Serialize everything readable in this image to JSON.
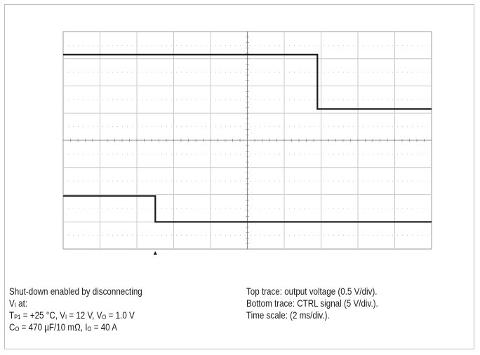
{
  "chart_data": {
    "type": "line",
    "x_divisions": 10,
    "y_divisions": 8,
    "major_grid": true,
    "minor_grid": "dotted",
    "series": [
      {
        "name": "Top trace: output voltage (0.5 V/div).",
        "points": [
          [
            0.0,
            7.15
          ],
          [
            6.9,
            7.15
          ],
          [
            6.9,
            5.15
          ],
          [
            10.0,
            5.15
          ]
        ],
        "color": "#1a1a1a"
      },
      {
        "name": "Bottom trace: CTRL signal (5 V/div.).",
        "points": [
          [
            0.0,
            1.95
          ],
          [
            2.5,
            1.95
          ],
          [
            2.5,
            1.0
          ],
          [
            10.0,
            1.0
          ]
        ],
        "color": "#1a1a1a"
      }
    ],
    "trigger_marker_x": 2.5
  },
  "caption_left": {
    "line1": "Shut-down enabled by disconnecting",
    "line2_var": "V",
    "line2_sub": "I",
    "line2_rest": " at:",
    "cond1": {
      "tp_var": "T",
      "tp_sub": "P1",
      "tp_val": " = +25 °C, ",
      "vi_var": "V",
      "vi_sub": "I",
      "vi_val": " = 12 V, ",
      "vo_var": "V",
      "vo_sub": "O",
      "vo_val": " = 1.0 V"
    },
    "cond2": {
      "co_var": "C",
      "co_sub": "O",
      "co_val": " = 470 µF/10 mΩ, ",
      "io_var": "I",
      "io_sub": "O",
      "io_val": " = 40 A"
    }
  },
  "caption_right": {
    "line1": "Top trace: output voltage (0.5 V/div).",
    "line2": "Bottom trace: CTRL signal (5 V/div.).",
    "line3": "Time scale: (2 ms/div.)."
  }
}
